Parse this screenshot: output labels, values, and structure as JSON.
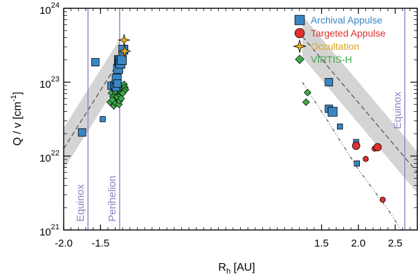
{
  "chart_data": {
    "type": "scatter",
    "xlabel_main": "R",
    "xlabel_sub": "h",
    "xlabel_unit": " [AU]",
    "ylabel": "Q / v  [cm",
    "ylabel_exp": "-1",
    "ylabel_close": "]",
    "yscale": "log",
    "xlim": [
      -2.0,
      2.8
    ],
    "ylim_exp": [
      21,
      24
    ],
    "x_ticks": [
      "-2.0",
      "-1.5",
      "1.5",
      "2.0",
      "2.5"
    ],
    "x_tick_positions": [
      -2.0,
      -1.5,
      1.5,
      2.0,
      2.5
    ],
    "y_ticks": [
      {
        "base": "10",
        "exp": "21",
        "val": 21
      },
      {
        "base": "10",
        "exp": "22",
        "val": 22
      },
      {
        "base": "10",
        "exp": "23",
        "val": 23
      },
      {
        "base": "10",
        "exp": "24",
        "val": 24
      }
    ],
    "vertical_lines": [
      {
        "x": -1.67,
        "label": "Equinox",
        "label_pos": "bottom"
      },
      {
        "x": -1.24,
        "label": "Perihelion",
        "label_pos": "bottom"
      },
      {
        "x": 2.63,
        "label": "Equinox",
        "label_pos": "top"
      }
    ],
    "colors": {
      "archival": "#3a86c4",
      "targeted": "#e03030",
      "occultation": "#f0b020",
      "virtis": "#3daa4a",
      "vline": "#8b82c6",
      "band": "#d4d4d4"
    },
    "legend": [
      {
        "label": "Archival Appulse",
        "marker": "square",
        "color": "#3a86c4",
        "text_color": "#3a86c4"
      },
      {
        "label": "Targeted Appulse",
        "marker": "circle",
        "color": "#e03030",
        "text_color": "#e03030"
      },
      {
        "label": "Occultation",
        "marker": "star",
        "color": "#f0b020",
        "text_color": "#d9a21c"
      },
      {
        "label": "VIRTIS-H",
        "marker": "diamond",
        "color": "#3daa4a",
        "text_color": "#3daa4a"
      }
    ],
    "series": [
      {
        "name": "Archival Appulse",
        "marker": "square",
        "points": [
          [
            -1.75,
            22.32,
            1
          ],
          [
            -1.57,
            23.27,
            1
          ],
          [
            -1.47,
            22.5,
            0.7
          ],
          [
            -1.35,
            22.95,
            1
          ],
          [
            -1.31,
            22.96,
            1
          ],
          [
            -1.29,
            22.93,
            1
          ],
          [
            -1.28,
            23.05,
            1.2
          ],
          [
            -1.27,
            22.98,
            1
          ],
          [
            -1.26,
            23.18,
            1.2
          ],
          [
            -1.25,
            23.3,
            1.2
          ],
          [
            -1.24,
            23.28,
            1.2
          ],
          [
            -1.23,
            23.25,
            1.2
          ],
          [
            -1.21,
            23.3,
            1.2
          ],
          [
            -1.19,
            23.44,
            1.2
          ],
          [
            1.6,
            23.0,
            1
          ],
          [
            1.6,
            22.64,
            1
          ],
          [
            1.65,
            22.6,
            1.2
          ],
          [
            1.75,
            22.4,
            0.7
          ],
          [
            1.97,
            22.19,
            0.7
          ],
          [
            1.98,
            21.9,
            0.7
          ]
        ]
      },
      {
        "name": "Targeted Appulse",
        "marker": "circle",
        "points": [
          [
            1.97,
            22.14,
            1
          ],
          [
            2.1,
            21.96,
            0.7
          ],
          [
            2.22,
            22.1,
            0.7
          ],
          [
            2.26,
            22.12,
            1
          ],
          [
            2.33,
            21.41,
            0.7
          ]
        ]
      },
      {
        "name": "Occultation",
        "marker": "star",
        "points": [
          [
            -1.18,
            23.57,
            1
          ],
          [
            -1.17,
            23.42,
            1
          ]
        ]
      },
      {
        "name": "VIRTIS-H",
        "marker": "diamond",
        "points": [
          [
            -1.37,
            22.73,
            1
          ],
          [
            -1.35,
            22.85,
            1
          ],
          [
            -1.33,
            22.8,
            1
          ],
          [
            -1.32,
            22.68,
            1
          ],
          [
            -1.31,
            22.75,
            1
          ],
          [
            -1.3,
            22.72,
            1
          ],
          [
            -1.29,
            22.84,
            1
          ],
          [
            -1.28,
            22.78,
            1
          ],
          [
            -1.27,
            22.8,
            1
          ],
          [
            -1.26,
            22.88,
            1
          ],
          [
            -1.25,
            22.7,
            1
          ],
          [
            -1.24,
            22.75,
            1
          ],
          [
            -1.23,
            22.82,
            1
          ],
          [
            -1.22,
            22.86,
            1
          ],
          [
            -1.21,
            22.9,
            1
          ],
          [
            -1.2,
            22.95,
            1
          ],
          [
            -1.19,
            22.92,
            1
          ],
          [
            -1.18,
            22.97,
            1
          ],
          [
            -1.17,
            22.93,
            1
          ],
          [
            -1.16,
            22.9,
            1
          ],
          [
            -1.18,
            22.88,
            1
          ],
          [
            -1.2,
            22.85,
            1
          ],
          [
            -1.3,
            22.88,
            1
          ],
          [
            -1.34,
            22.76,
            1
          ],
          [
            -1.22,
            22.78,
            1
          ],
          [
            1.31,
            22.86,
            1
          ],
          [
            1.29,
            22.73,
            1
          ]
        ]
      }
    ],
    "model_curve": {
      "pre_perihelion": [
        [
          -2.0,
          22.1
        ],
        [
          -1.24,
          23.3
        ]
      ],
      "post_perihelion": [
        [
          1.24,
          23.62
        ],
        [
          2.8,
          21.78
        ]
      ],
      "band_halfwidth_exp": 0.28,
      "dashdot_post": [
        [
          1.24,
          23.0
        ],
        [
          1.6,
          22.45
        ],
        [
          2.0,
          21.82
        ],
        [
          2.4,
          21.28
        ],
        [
          2.58,
          21.0
        ]
      ]
    }
  }
}
